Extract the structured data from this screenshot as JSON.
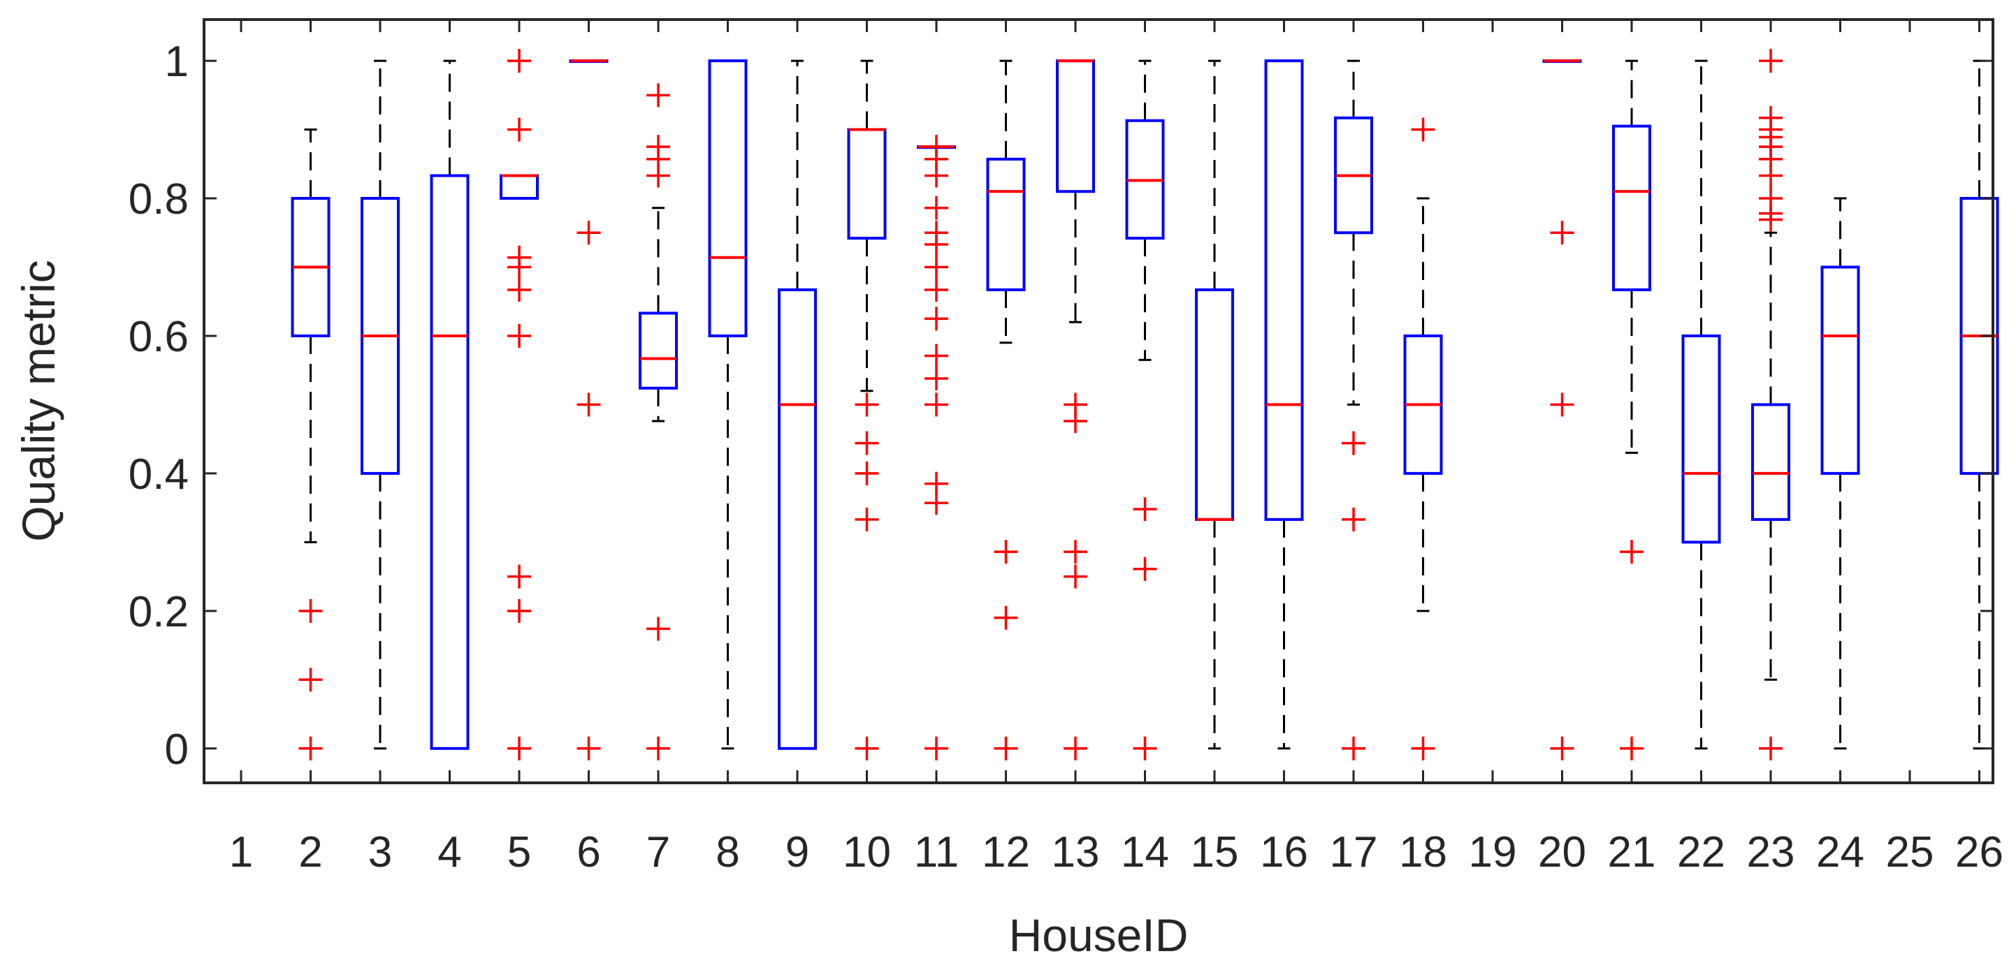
{
  "colors": {
    "box": "#0000ff",
    "median": "#ff0000",
    "whisker": "#000000",
    "outlier": "#ff0000",
    "axis": "#262626",
    "text": "#262626"
  },
  "chart_data": {
    "type": "box",
    "title": "",
    "xlabel": "HouseID",
    "ylabel": "Quality metric",
    "ylim": [
      -0.05,
      1.06
    ],
    "yticks": [
      0,
      0.2,
      0.4,
      0.6,
      0.8,
      1
    ],
    "ytick_labels": [
      "0",
      "0.2",
      "0.4",
      "0.6",
      "0.8",
      "1"
    ],
    "categories": [
      "1",
      "2",
      "3",
      "4",
      "5",
      "6",
      "7",
      "8",
      "9",
      "10",
      "11",
      "12",
      "13",
      "14",
      "15",
      "16",
      "17",
      "18",
      "19",
      "20",
      "21",
      "22",
      "23",
      "24",
      "25",
      "26"
    ],
    "grid": false,
    "legend": "none",
    "boxes": [
      {
        "category": "1",
        "empty": true
      },
      {
        "category": "2",
        "q1": 0.6,
        "median": 0.7,
        "q3": 0.8,
        "whisker_low": 0.3,
        "whisker_high": 0.9,
        "outliers": [
          0.2,
          0.1,
          0.0
        ]
      },
      {
        "category": "3",
        "q1": 0.4,
        "median": 0.6,
        "q3": 0.8,
        "whisker_low": 0.0,
        "whisker_high": 1.0,
        "outliers": []
      },
      {
        "category": "4",
        "q1": 0.0,
        "median": 0.6,
        "q3": 0.833,
        "whisker_low": 0.0,
        "whisker_high": 1.0,
        "outliers": []
      },
      {
        "category": "5",
        "q1": 0.8,
        "median": 0.833,
        "q3": 0.833,
        "whisker_low": 0.8,
        "whisker_high": 0.833,
        "outliers": [
          1.0,
          0.9,
          0.714,
          0.7,
          0.667,
          0.6,
          0.25,
          0.2,
          0.0
        ]
      },
      {
        "category": "6",
        "q1": 1.0,
        "median": 1.0,
        "q3": 1.0,
        "whisker_low": 1.0,
        "whisker_high": 1.0,
        "outliers": [
          0.75,
          0.5,
          0.0
        ]
      },
      {
        "category": "7",
        "q1": 0.524,
        "median": 0.567,
        "q3": 0.633,
        "whisker_low": 0.476,
        "whisker_high": 0.786,
        "outliers": [
          0.95,
          0.875,
          0.857,
          0.833,
          0.174,
          0.0
        ]
      },
      {
        "category": "8",
        "q1": 0.6,
        "median": 0.714,
        "q3": 1.0,
        "whisker_low": 0.0,
        "whisker_high": 1.0,
        "outliers": []
      },
      {
        "category": "9",
        "q1": 0.0,
        "median": 0.5,
        "q3": 0.667,
        "whisker_low": 0.0,
        "whisker_high": 1.0,
        "outliers": []
      },
      {
        "category": "10",
        "q1": 0.742,
        "median": 0.9,
        "q3": 0.9,
        "whisker_low": 0.52,
        "whisker_high": 1.0,
        "outliers": [
          0.5,
          0.444,
          0.4,
          0.333,
          0.0
        ]
      },
      {
        "category": "11",
        "q1": 0.875,
        "median": 0.875,
        "q3": 0.875,
        "whisker_low": 0.875,
        "whisker_high": 0.875,
        "outliers": [
          0.875,
          0.857,
          0.833,
          0.786,
          0.75,
          0.733,
          0.7,
          0.667,
          0.625,
          0.571,
          0.538,
          0.5,
          0.385,
          0.357,
          0.0
        ]
      },
      {
        "category": "12",
        "q1": 0.667,
        "median": 0.81,
        "q3": 0.857,
        "whisker_low": 0.59,
        "whisker_high": 1.0,
        "outliers": [
          0.286,
          0.19,
          0.0
        ]
      },
      {
        "category": "13",
        "q1": 0.81,
        "median": 1.0,
        "q3": 1.0,
        "whisker_low": 0.62,
        "whisker_high": 1.0,
        "outliers": [
          0.5,
          0.476,
          0.286,
          0.25,
          0.0
        ]
      },
      {
        "category": "14",
        "q1": 0.742,
        "median": 0.826,
        "q3": 0.913,
        "whisker_low": 0.565,
        "whisker_high": 1.0,
        "outliers": [
          0.348,
          0.261,
          0.0
        ]
      },
      {
        "category": "15",
        "q1": 0.333,
        "median": 0.333,
        "q3": 0.667,
        "whisker_low": 0.0,
        "whisker_high": 1.0,
        "outliers": []
      },
      {
        "category": "16",
        "q1": 0.333,
        "median": 0.5,
        "q3": 1.0,
        "whisker_low": 0.0,
        "whisker_high": 1.0,
        "outliers": []
      },
      {
        "category": "17",
        "q1": 0.75,
        "median": 0.833,
        "q3": 0.917,
        "whisker_low": 0.5,
        "whisker_high": 1.0,
        "outliers": [
          0.444,
          0.333,
          0.0
        ]
      },
      {
        "category": "18",
        "q1": 0.4,
        "median": 0.5,
        "q3": 0.6,
        "whisker_low": 0.2,
        "whisker_high": 0.8,
        "outliers": [
          0.9,
          0.0
        ]
      },
      {
        "category": "19",
        "empty": true
      },
      {
        "category": "20",
        "q1": 1.0,
        "median": 1.0,
        "q3": 1.0,
        "whisker_low": 1.0,
        "whisker_high": 1.0,
        "outliers": [
          0.75,
          0.5,
          0.0
        ]
      },
      {
        "category": "21",
        "q1": 0.667,
        "median": 0.81,
        "q3": 0.905,
        "whisker_low": 0.43,
        "whisker_high": 1.0,
        "outliers": [
          0.286,
          0.0
        ]
      },
      {
        "category": "22",
        "q1": 0.3,
        "median": 0.4,
        "q3": 0.6,
        "whisker_low": 0.0,
        "whisker_high": 1.0,
        "outliers": []
      },
      {
        "category": "23",
        "q1": 0.333,
        "median": 0.4,
        "q3": 0.5,
        "whisker_low": 0.1,
        "whisker_high": 0.75,
        "outliers": [
          1.0,
          0.917,
          0.9,
          0.889,
          0.875,
          0.857,
          0.833,
          0.8,
          0.778,
          0.769,
          0.0
        ]
      },
      {
        "category": "24",
        "q1": 0.4,
        "median": 0.6,
        "q3": 0.7,
        "whisker_low": 0.0,
        "whisker_high": 0.8,
        "outliers": []
      },
      {
        "category": "25",
        "empty": true
      },
      {
        "category": "26",
        "q1": 0.4,
        "median": 0.6,
        "q3": 0.8,
        "whisker_low": 0.0,
        "whisker_high": 1.0,
        "outliers": []
      }
    ]
  }
}
